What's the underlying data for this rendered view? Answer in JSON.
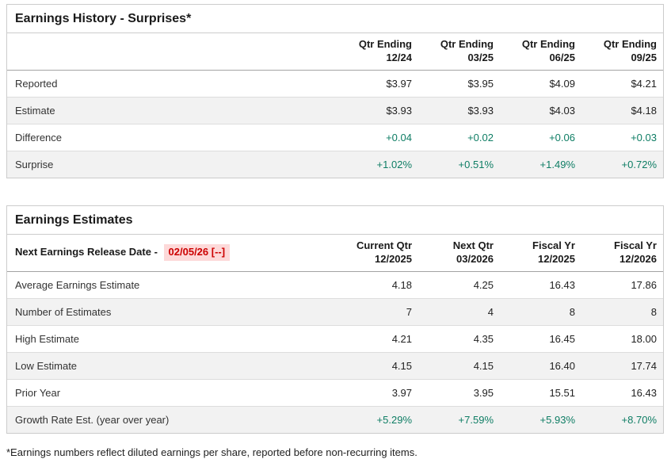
{
  "colors": {
    "positive_green": "#0e7d64",
    "alert_red_text": "#cc0000",
    "alert_red_bg": "#fdd9d9",
    "stripe_row_bg": "#f2f2f2",
    "table_border": "#cccccc"
  },
  "earnings_history": {
    "title": "Earnings History - Surprises*",
    "columns": [
      {
        "line1": "Qtr Ending",
        "line2": "12/24"
      },
      {
        "line1": "Qtr Ending",
        "line2": "03/25"
      },
      {
        "line1": "Qtr Ending",
        "line2": "06/25"
      },
      {
        "line1": "Qtr Ending",
        "line2": "09/25"
      }
    ],
    "rows": [
      {
        "label": "Reported",
        "values": [
          "$3.97",
          "$3.95",
          "$4.09",
          "$4.21"
        ],
        "value_style": "normal"
      },
      {
        "label": "Estimate",
        "values": [
          "$3.93",
          "$3.93",
          "$4.03",
          "$4.18"
        ],
        "value_style": "normal"
      },
      {
        "label": "Difference",
        "values": [
          "+0.04",
          "+0.02",
          "+0.06",
          "+0.03"
        ],
        "value_style": "green"
      },
      {
        "label": "Surprise",
        "values": [
          "+1.02%",
          "+0.51%",
          "+1.49%",
          "+0.72%"
        ],
        "value_style": "green"
      }
    ]
  },
  "earnings_estimates": {
    "title": "Earnings Estimates",
    "release_label": "Next Earnings Release Date -",
    "release_date": "02/05/26 [--]",
    "columns": [
      {
        "line1": "Current Qtr",
        "line2": "12/2025"
      },
      {
        "line1": "Next Qtr",
        "line2": "03/2026"
      },
      {
        "line1": "Fiscal Yr",
        "line2": "12/2025"
      },
      {
        "line1": "Fiscal Yr",
        "line2": "12/2026"
      }
    ],
    "rows": [
      {
        "label": "Average Earnings Estimate",
        "values": [
          "4.18",
          "4.25",
          "16.43",
          "17.86"
        ],
        "value_style": "normal"
      },
      {
        "label": "Number of Estimates",
        "values": [
          "7",
          "4",
          "8",
          "8"
        ],
        "value_style": "normal"
      },
      {
        "label": "High Estimate",
        "values": [
          "4.21",
          "4.35",
          "16.45",
          "18.00"
        ],
        "value_style": "normal"
      },
      {
        "label": "Low Estimate",
        "values": [
          "4.15",
          "4.15",
          "16.40",
          "17.74"
        ],
        "value_style": "normal"
      },
      {
        "label": "Prior Year",
        "values": [
          "3.97",
          "3.95",
          "15.51",
          "16.43"
        ],
        "value_style": "normal"
      },
      {
        "label": "Growth Rate Est. (year over year)",
        "values": [
          "+5.29%",
          "+7.59%",
          "+5.93%",
          "+8.70%"
        ],
        "value_style": "green"
      }
    ]
  },
  "footnote": "*Earnings numbers reflect diluted earnings per share, reported before non-recurring items."
}
